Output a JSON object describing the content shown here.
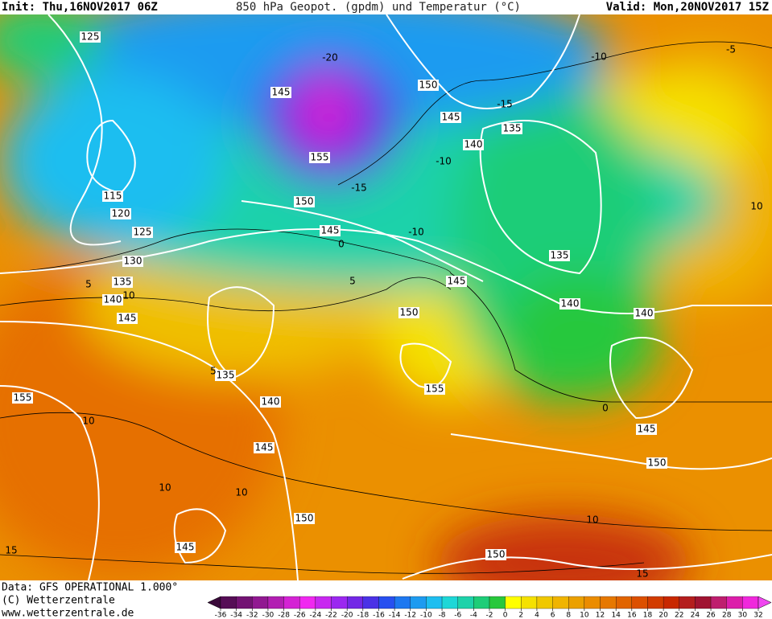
{
  "header": {
    "init": "Init: Thu,16NOV2017 06Z",
    "title": "850 hPa Geopot. (gpdm) und Temperatur (°C)",
    "valid": "Valid: Mon,20NOV2017 15Z"
  },
  "map": {
    "geopotential_labels": [
      125,
      145,
      150,
      145,
      135,
      140,
      155,
      115,
      120,
      125,
      150,
      145,
      130,
      135,
      140,
      145,
      135,
      145,
      140,
      150,
      140,
      135,
      155,
      155,
      140,
      145,
      145,
      150,
      150,
      145,
      150
    ],
    "temperature_labels": [
      -5,
      -10,
      -15,
      -10,
      -15,
      -10,
      0,
      5,
      10,
      5,
      5,
      10,
      10,
      10,
      10,
      15,
      15,
      10,
      -20,
      0
    ]
  },
  "footer": {
    "data": "Data: GFS OPERATIONAL 1.000°",
    "copyright": "(C) Wetterzentrale",
    "url": "www.wetterzentrale.de"
  },
  "colorbar": {
    "ticks": [
      -36,
      -34,
      -32,
      -30,
      -28,
      -26,
      -24,
      -22,
      -20,
      -18,
      -16,
      -14,
      -12,
      -10,
      -8,
      -6,
      -4,
      -2,
      0,
      2,
      4,
      6,
      8,
      10,
      12,
      14,
      16,
      18,
      20,
      22,
      24,
      26,
      28,
      30,
      32
    ],
    "colors": [
      "#3a0a3a",
      "#560e56",
      "#731373",
      "#911991",
      "#b21fb2",
      "#d423d4",
      "#f028f0",
      "#c828f0",
      "#9b28f0",
      "#7328e6",
      "#4b32e6",
      "#2850f0",
      "#1e78f0",
      "#1e9bf0",
      "#1ebef0",
      "#1ed7d7",
      "#1ed2aa",
      "#1ecd78",
      "#28c83c",
      "#ffff00",
      "#f5e100",
      "#f0c800",
      "#f0b400",
      "#eba000",
      "#eb8c00",
      "#e67800",
      "#e16400",
      "#dc5000",
      "#d23c00",
      "#c82800",
      "#b41e1e",
      "#a01432",
      "#be1e6e",
      "#dc1eaa",
      "#f028dc",
      "#f046f0"
    ]
  }
}
